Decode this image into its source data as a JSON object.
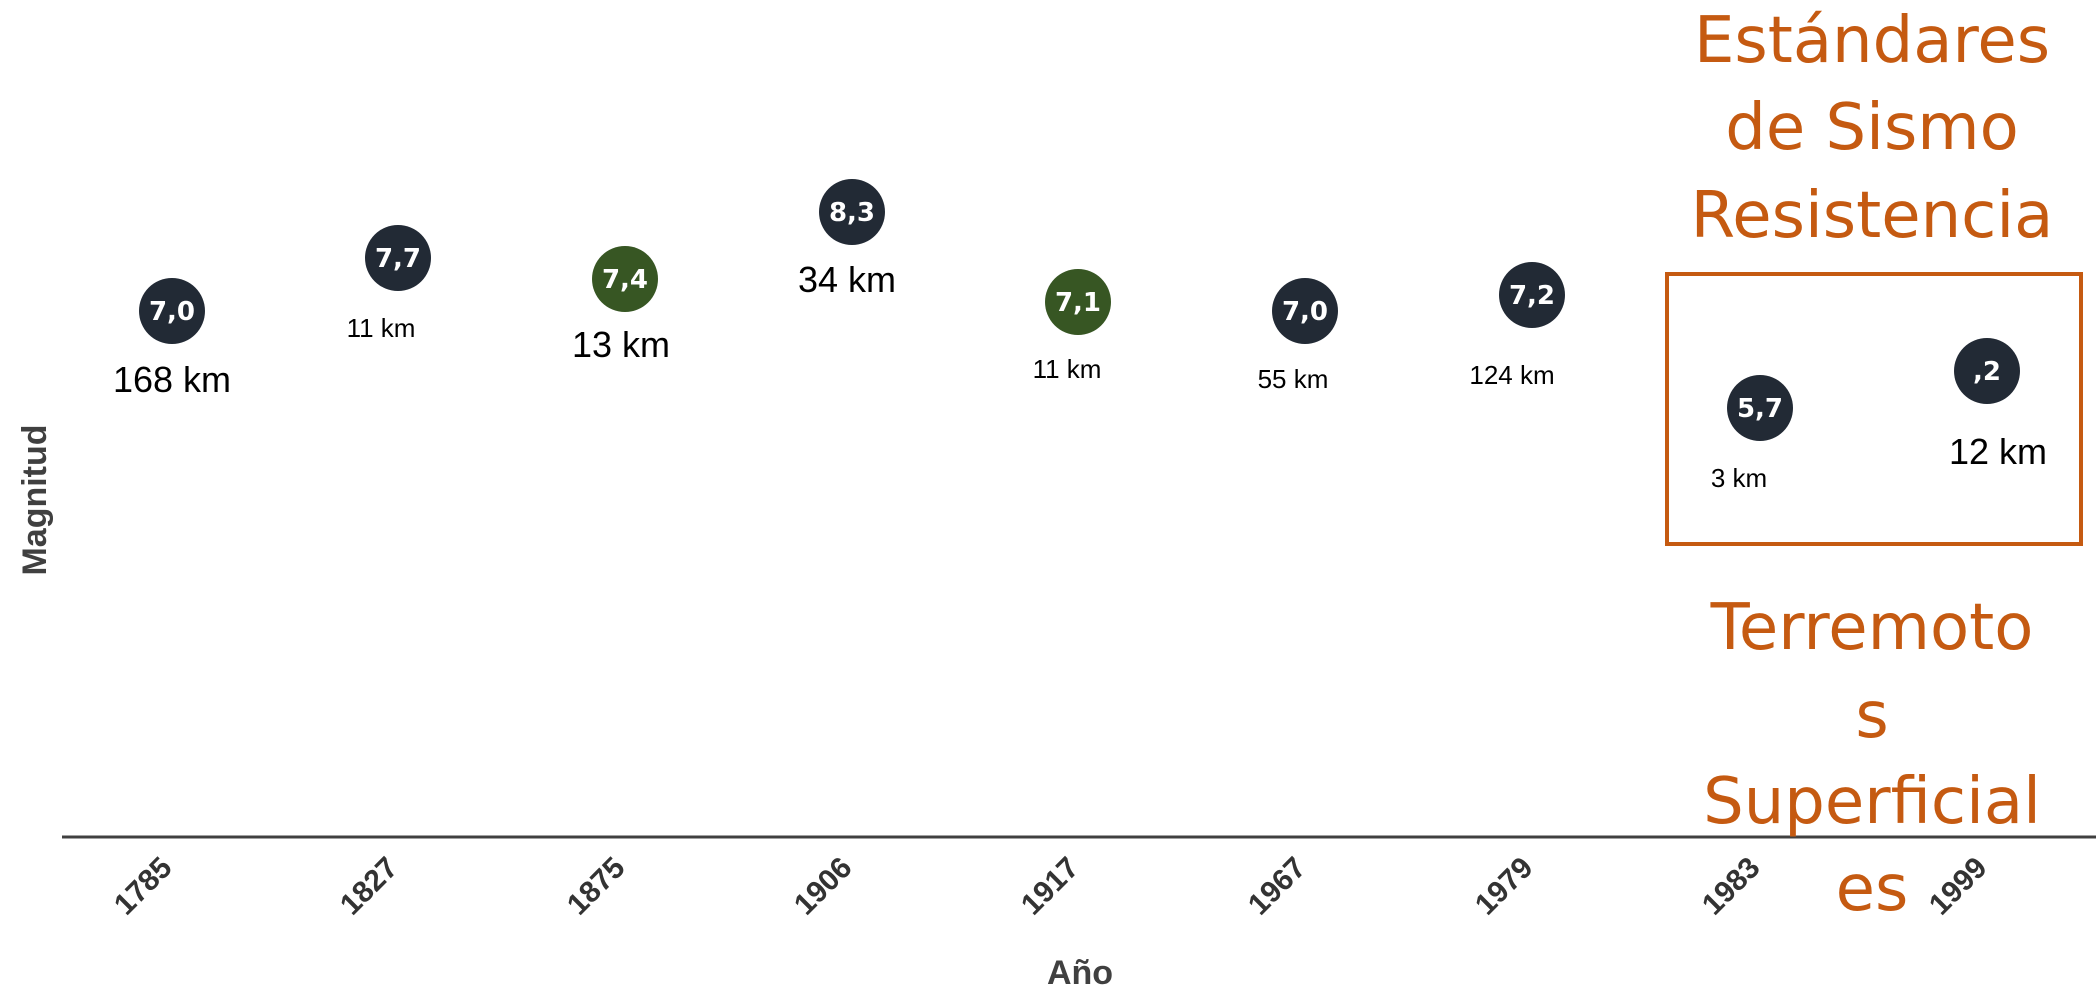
{
  "chart_data": {
    "type": "scatter",
    "xlabel": "Año",
    "ylabel": "Magnitud",
    "categories": [
      "1785",
      "1827",
      "1875",
      "1906",
      "1917",
      "1967",
      "1979",
      "1983",
      "1999"
    ],
    "points": [
      {
        "year": "1785",
        "magnitude": "7,0",
        "depth": "168 km",
        "color": "#222a35"
      },
      {
        "year": "1827",
        "magnitude": "7,7",
        "depth": "11 km",
        "color": "#222a35"
      },
      {
        "year": "1875",
        "magnitude": "7,4",
        "depth": "13 km",
        "color": "#375623"
      },
      {
        "year": "1906",
        "magnitude": "8,3",
        "depth": "34 km",
        "color": "#222a35"
      },
      {
        "year": "1917",
        "magnitude": "7,1",
        "depth": "11 km",
        "color": "#375623"
      },
      {
        "year": "1967",
        "magnitude": "7,0",
        "depth": "55 km",
        "color": "#222a35"
      },
      {
        "year": "1979",
        "magnitude": "7,2",
        "depth": "124 km",
        "color": "#222a35"
      },
      {
        "year": "1983",
        "magnitude": "5,7",
        "depth": "3 km",
        "color": "#222a35"
      },
      {
        "year": "1999",
        "magnitude": ",2",
        "depth": "12 km",
        "color": "#222a35"
      }
    ],
    "annotations": {
      "top_lines": [
        "Estándares",
        "de Sismo",
        "Resistencia"
      ],
      "bottom_lines": [
        "Terremoto",
        "s",
        "Superficial",
        "es"
      ],
      "highlight_color": "#C55A11"
    }
  }
}
